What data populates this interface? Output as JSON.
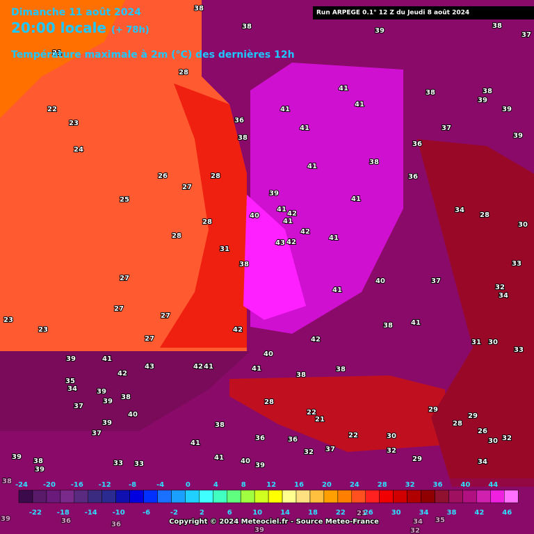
{
  "header": {
    "date": "Dimanche 11 août 2024",
    "time": "20:00 locale",
    "lead": "(+ 78h)",
    "parameter": "Température maximale à 2m (°C) des dernières 12h",
    "run": "Run ARPEGE 0.1° 12 Z du Jeudi 8 août 2024"
  },
  "footer": {
    "copyright": "Copyright © 2024 Meteociel.fr - Source Meteo-France"
  },
  "legend": {
    "top_labels": [
      "-24",
      "-20",
      "-16",
      "-12",
      "-8",
      "-4",
      "0",
      "4",
      "8",
      "12",
      "16",
      "20",
      "24",
      "28",
      "32",
      "36",
      "40",
      "44"
    ],
    "bottom_labels": [
      "-22",
      "-18",
      "-14",
      "-10",
      "-6",
      "-2",
      "2",
      "6",
      "10",
      "14",
      "18",
      "22",
      "26",
      "30",
      "34",
      "38",
      "42",
      "46"
    ],
    "colors": [
      "#3a0a4a",
      "#5a1a6a",
      "#6a1a7a",
      "#7a2a8a",
      "#5a2a80",
      "#3a2a80",
      "#2a2a90",
      "#1010b0",
      "#0000e0",
      "#0030ff",
      "#1a70ff",
      "#1aa0ff",
      "#20d0ff",
      "#40ffff",
      "#40ffc0",
      "#60ff80",
      "#a0ff40",
      "#d0ff20",
      "#ffff00",
      "#ffff90",
      "#ffe080",
      "#ffc040",
      "#ffa000",
      "#ff8000",
      "#ff5020",
      "#ff2020",
      "#f00000",
      "#d00000",
      "#b00000",
      "#900000",
      "#901030",
      "#a01060",
      "#b01080",
      "#d020b0",
      "#f020e0",
      "#ff70ff"
    ]
  },
  "map_labels": [
    "38",
    "38",
    "39",
    "38",
    "37",
    "21",
    "28",
    "41",
    "41",
    "41",
    "38",
    "38",
    "39",
    "39",
    "22",
    "23",
    "41",
    "37",
    "36",
    "38",
    "39",
    "24",
    "36",
    "38",
    "41",
    "26",
    "27",
    "28",
    "36",
    "25",
    "41",
    "39",
    "41",
    "42",
    "41",
    "40",
    "28",
    "28",
    "42",
    "41",
    "43",
    "42",
    "31",
    "38",
    "34",
    "28",
    "30",
    "33",
    "27",
    "40",
    "37",
    "41",
    "32",
    "34",
    "27",
    "27",
    "23",
    "23",
    "42",
    "38",
    "41",
    "42",
    "27",
    "40",
    "41",
    "38",
    "38",
    "39",
    "41",
    "43",
    "42",
    "42",
    "41",
    "31",
    "30",
    "33",
    "35",
    "34",
    "37",
    "39",
    "39",
    "38",
    "40",
    "39",
    "37",
    "38",
    "41",
    "36",
    "36",
    "32",
    "37",
    "41",
    "40",
    "39",
    "39",
    "38",
    "39",
    "33",
    "33",
    "38",
    "28",
    "22",
    "21",
    "22",
    "30",
    "32",
    "29",
    "28",
    "29",
    "26",
    "30",
    "32",
    "34",
    "29",
    "21",
    "34",
    "35",
    "36",
    "36",
    "39",
    "39",
    "32"
  ]
}
